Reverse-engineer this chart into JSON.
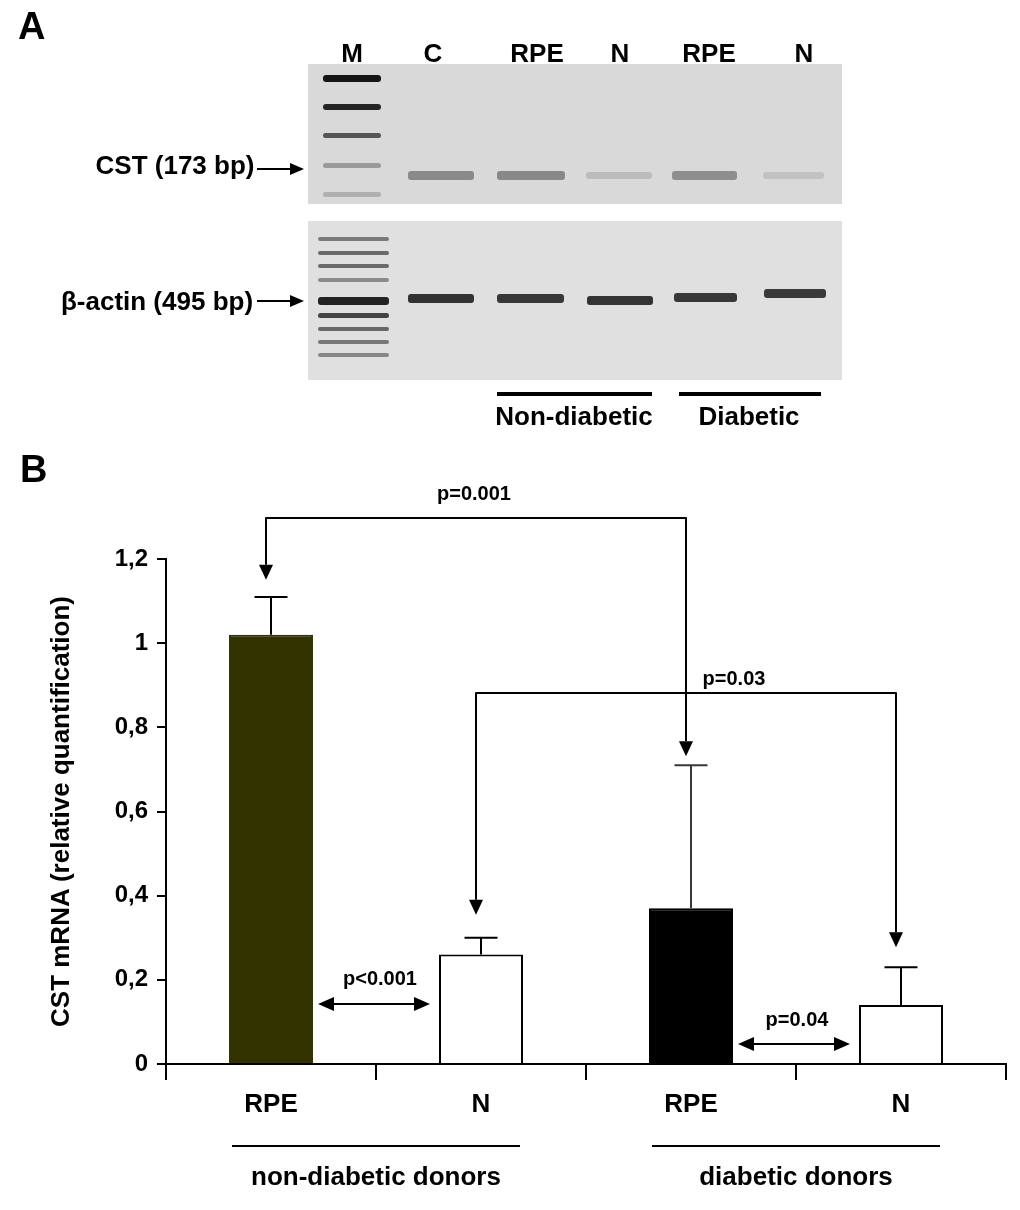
{
  "chart_data": [
    {
      "type": "other",
      "title": "A",
      "annotations": [
        "M",
        "C",
        "RPE",
        "N",
        "RPE",
        "N",
        "CST (173 bp)",
        "β-actin (495 bp)",
        "Non-diabetic",
        "Diabetic"
      ]
    },
    {
      "type": "bar",
      "title": "B",
      "ylabel": "CST mRNA (relative quantification)",
      "categories": [
        "RPE",
        "N",
        "RPE",
        "N"
      ],
      "values": [
        1.02,
        0.26,
        0.37,
        0.14
      ],
      "colors": [
        "#333300",
        "#ffffff",
        "#000000",
        "#ffffff"
      ],
      "errors": [
        [
          1.02,
          1.11
        ],
        [
          0.26,
          0.3
        ],
        [
          0.37,
          0.71
        ],
        [
          0.14,
          0.23
        ]
      ],
      "ylim": [
        0,
        1.2
      ],
      "yticks": [
        0,
        {
          "value": 0.2,
          "label": "0,2"
        },
        {
          "value": 0.4,
          "label": "0,4"
        },
        {
          "value": 0.6,
          "label": "0,6"
        },
        {
          "value": 0.8,
          "label": "0,8"
        },
        1,
        {
          "value": 1.2,
          "label": "1,2"
        }
      ],
      "annotations": [
        "p=0.001",
        "p=0.03",
        "p<0.001",
        "p=0.04",
        "non-diabetic donors",
        "diabetic donors"
      ]
    }
  ]
}
